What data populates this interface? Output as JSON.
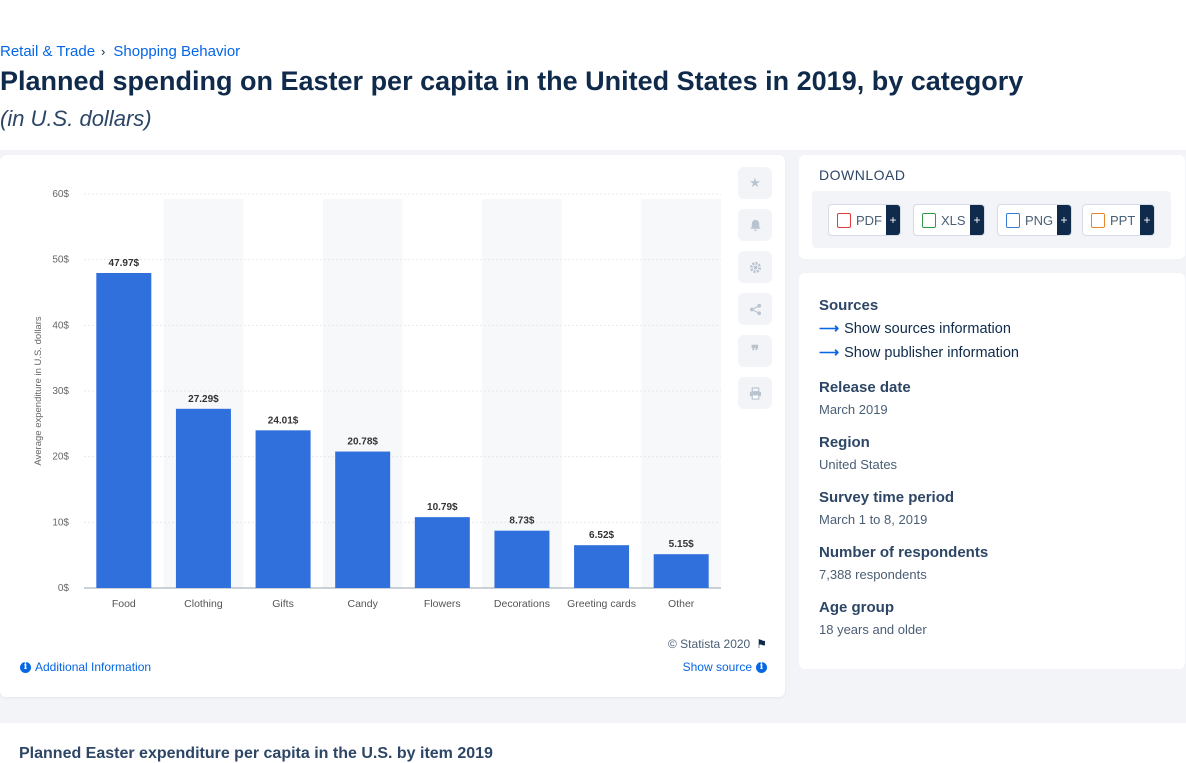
{
  "breadcrumb": {
    "item1": "Retail & Trade",
    "item2": "Shopping Behavior"
  },
  "page": {
    "title": "Planned spending on Easter per capita in the United States in 2019, by category",
    "subtitle": "(in U.S. dollars)"
  },
  "chart_data": {
    "type": "bar",
    "categories": [
      "Food",
      "Clothing",
      "Gifts",
      "Candy",
      "Flowers",
      "Decorations",
      "Greeting cards",
      "Other"
    ],
    "values": [
      47.97,
      27.29,
      24.01,
      20.78,
      10.79,
      8.73,
      6.52,
      5.15
    ],
    "value_labels": [
      "47.97$",
      "27.29$",
      "24.01$",
      "20.78$",
      "10.79$",
      "8.73$",
      "6.52$",
      "5.15$"
    ],
    "yticks": [
      "0$",
      "10$",
      "20$",
      "30$",
      "40$",
      "50$",
      "60$"
    ],
    "ylabel": "Average expenditure in U.S. dollars",
    "ylim": [
      0,
      60
    ],
    "bar_color": "#3070dc",
    "grid": true
  },
  "chart_footer": {
    "credit": "© Statista 2020",
    "additional_info": "Additional Information",
    "show_source": "Show source"
  },
  "download": {
    "title": "DOWNLOAD",
    "buttons": [
      {
        "label": "PDF",
        "plus": "+",
        "color": "#e03a3a"
      },
      {
        "label": "XLS",
        "plus": "+",
        "color": "#2e9b44"
      },
      {
        "label": "PNG",
        "plus": "+",
        "color": "#3a7bd5"
      },
      {
        "label": "PPT",
        "plus": "+",
        "color": "#e8862a"
      }
    ]
  },
  "meta": {
    "sources_label": "Sources",
    "show_sources": "Show sources information",
    "show_publisher": "Show publisher information",
    "release_label": "Release date",
    "release_value": "March 2019",
    "region_label": "Region",
    "region_value": "United States",
    "survey_label": "Survey time period",
    "survey_value": "March 1 to 8, 2019",
    "respondents_label": "Number of respondents",
    "respondents_value": "7,388 respondents",
    "age_label": "Age group",
    "age_value": "18 years and older"
  },
  "bottom": {
    "title": "Planned Easter expenditure per capita in the U.S. by item 2019"
  }
}
